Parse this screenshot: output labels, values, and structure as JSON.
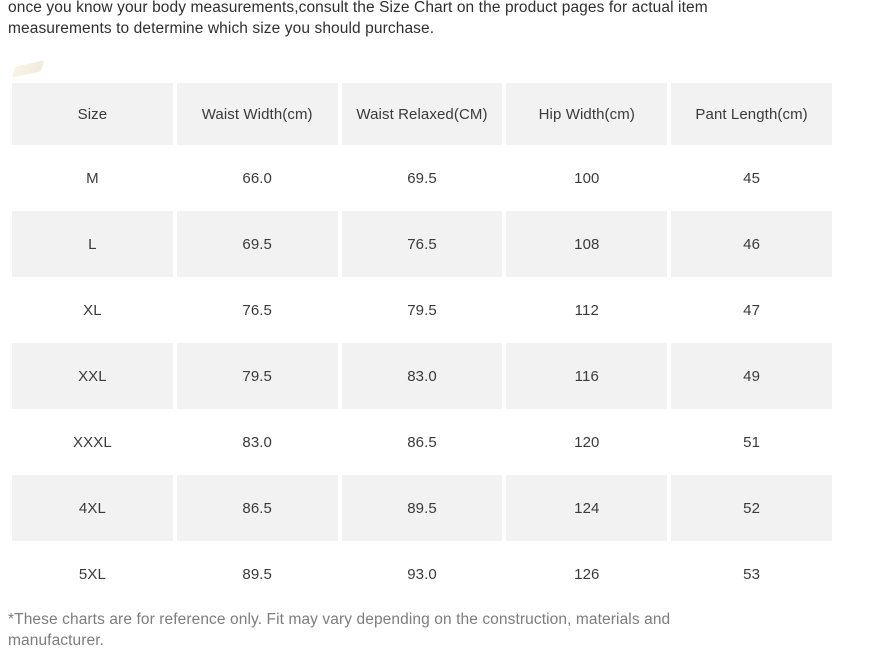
{
  "intro": {
    "line1": "once you know your body measurements,consult the Size Chart on the product pages for actual item",
    "line2": "measurements to determine which size you should purchase."
  },
  "size_table": {
    "headers": [
      "Size",
      "Waist Width(cm)",
      "Waist Relaxed(CM)",
      "Hip Width(cm)",
      "Pant Length(cm)"
    ],
    "rows": [
      [
        "M",
        "66.0",
        "69.5",
        "100",
        "45"
      ],
      [
        "L",
        "69.5",
        "76.5",
        "108",
        "46"
      ],
      [
        "XL",
        "76.5",
        "79.5",
        "112",
        "47"
      ],
      [
        "XXL",
        "79.5",
        "83.0",
        "116",
        "49"
      ],
      [
        "XXXL",
        "83.0",
        "86.5",
        "120",
        "51"
      ],
      [
        "4XL",
        "86.5",
        "89.5",
        "124",
        "52"
      ],
      [
        "5XL",
        "89.5",
        "93.0",
        "126",
        "53"
      ]
    ]
  },
  "footnote": {
    "line1": "*These charts are for reference only. Fit may vary depending on the construction, materials and",
    "line2": "manufacturer."
  },
  "colors": {
    "row_shade": "#f2f2f2",
    "text_primary": "#333333",
    "text_muted": "#7d7d7d",
    "page_background": "#ffffff"
  }
}
